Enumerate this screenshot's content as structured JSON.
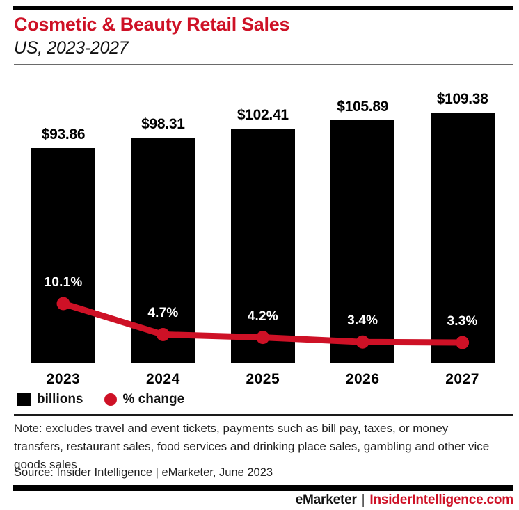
{
  "header": {
    "title": "Cosmetic & Beauty Retail Sales",
    "subtitle": "US, 2023-2027"
  },
  "chart_data": {
    "type": "bar",
    "categories": [
      "2023",
      "2024",
      "2025",
      "2026",
      "2027"
    ],
    "series": [
      {
        "name": "billions",
        "type": "bar",
        "color": "#000000",
        "values": [
          93.86,
          98.31,
          102.41,
          105.89,
          109.38
        ],
        "labels": [
          "$93.86",
          "$98.31",
          "$102.41",
          "$105.89",
          "$109.38"
        ]
      },
      {
        "name": "% change",
        "type": "line",
        "color": "#ce1126",
        "values": [
          10.1,
          4.7,
          4.2,
          3.4,
          3.3
        ],
        "labels": [
          "10.1%",
          "4.7%",
          "4.2%",
          "3.4%",
          "3.3%"
        ]
      }
    ],
    "title": "Cosmetic & Beauty Retail Sales",
    "subtitle": "US, 2023-2027",
    "xlabel": "",
    "ylabel": "",
    "ylim_bars": [
      0,
      120
    ],
    "grid": false,
    "legend_position": "bottom"
  },
  "legend": {
    "bar_label": "billions",
    "line_label": "% change"
  },
  "notes": {
    "note": "Note: excludes travel and event tickets, payments such as bill pay, taxes, or money transfers, restaurant sales, food services and drinking place sales, gambling and other vice goods sales",
    "source": "Source: Insider Intelligence | eMarketer, June 2023"
  },
  "footer": {
    "brand": "eMarketer",
    "separator": "|",
    "site": "InsiderIntelligence.com"
  },
  "colors": {
    "accent_red": "#ce1126",
    "bar_black": "#000000",
    "label_white": "#ffffff"
  }
}
